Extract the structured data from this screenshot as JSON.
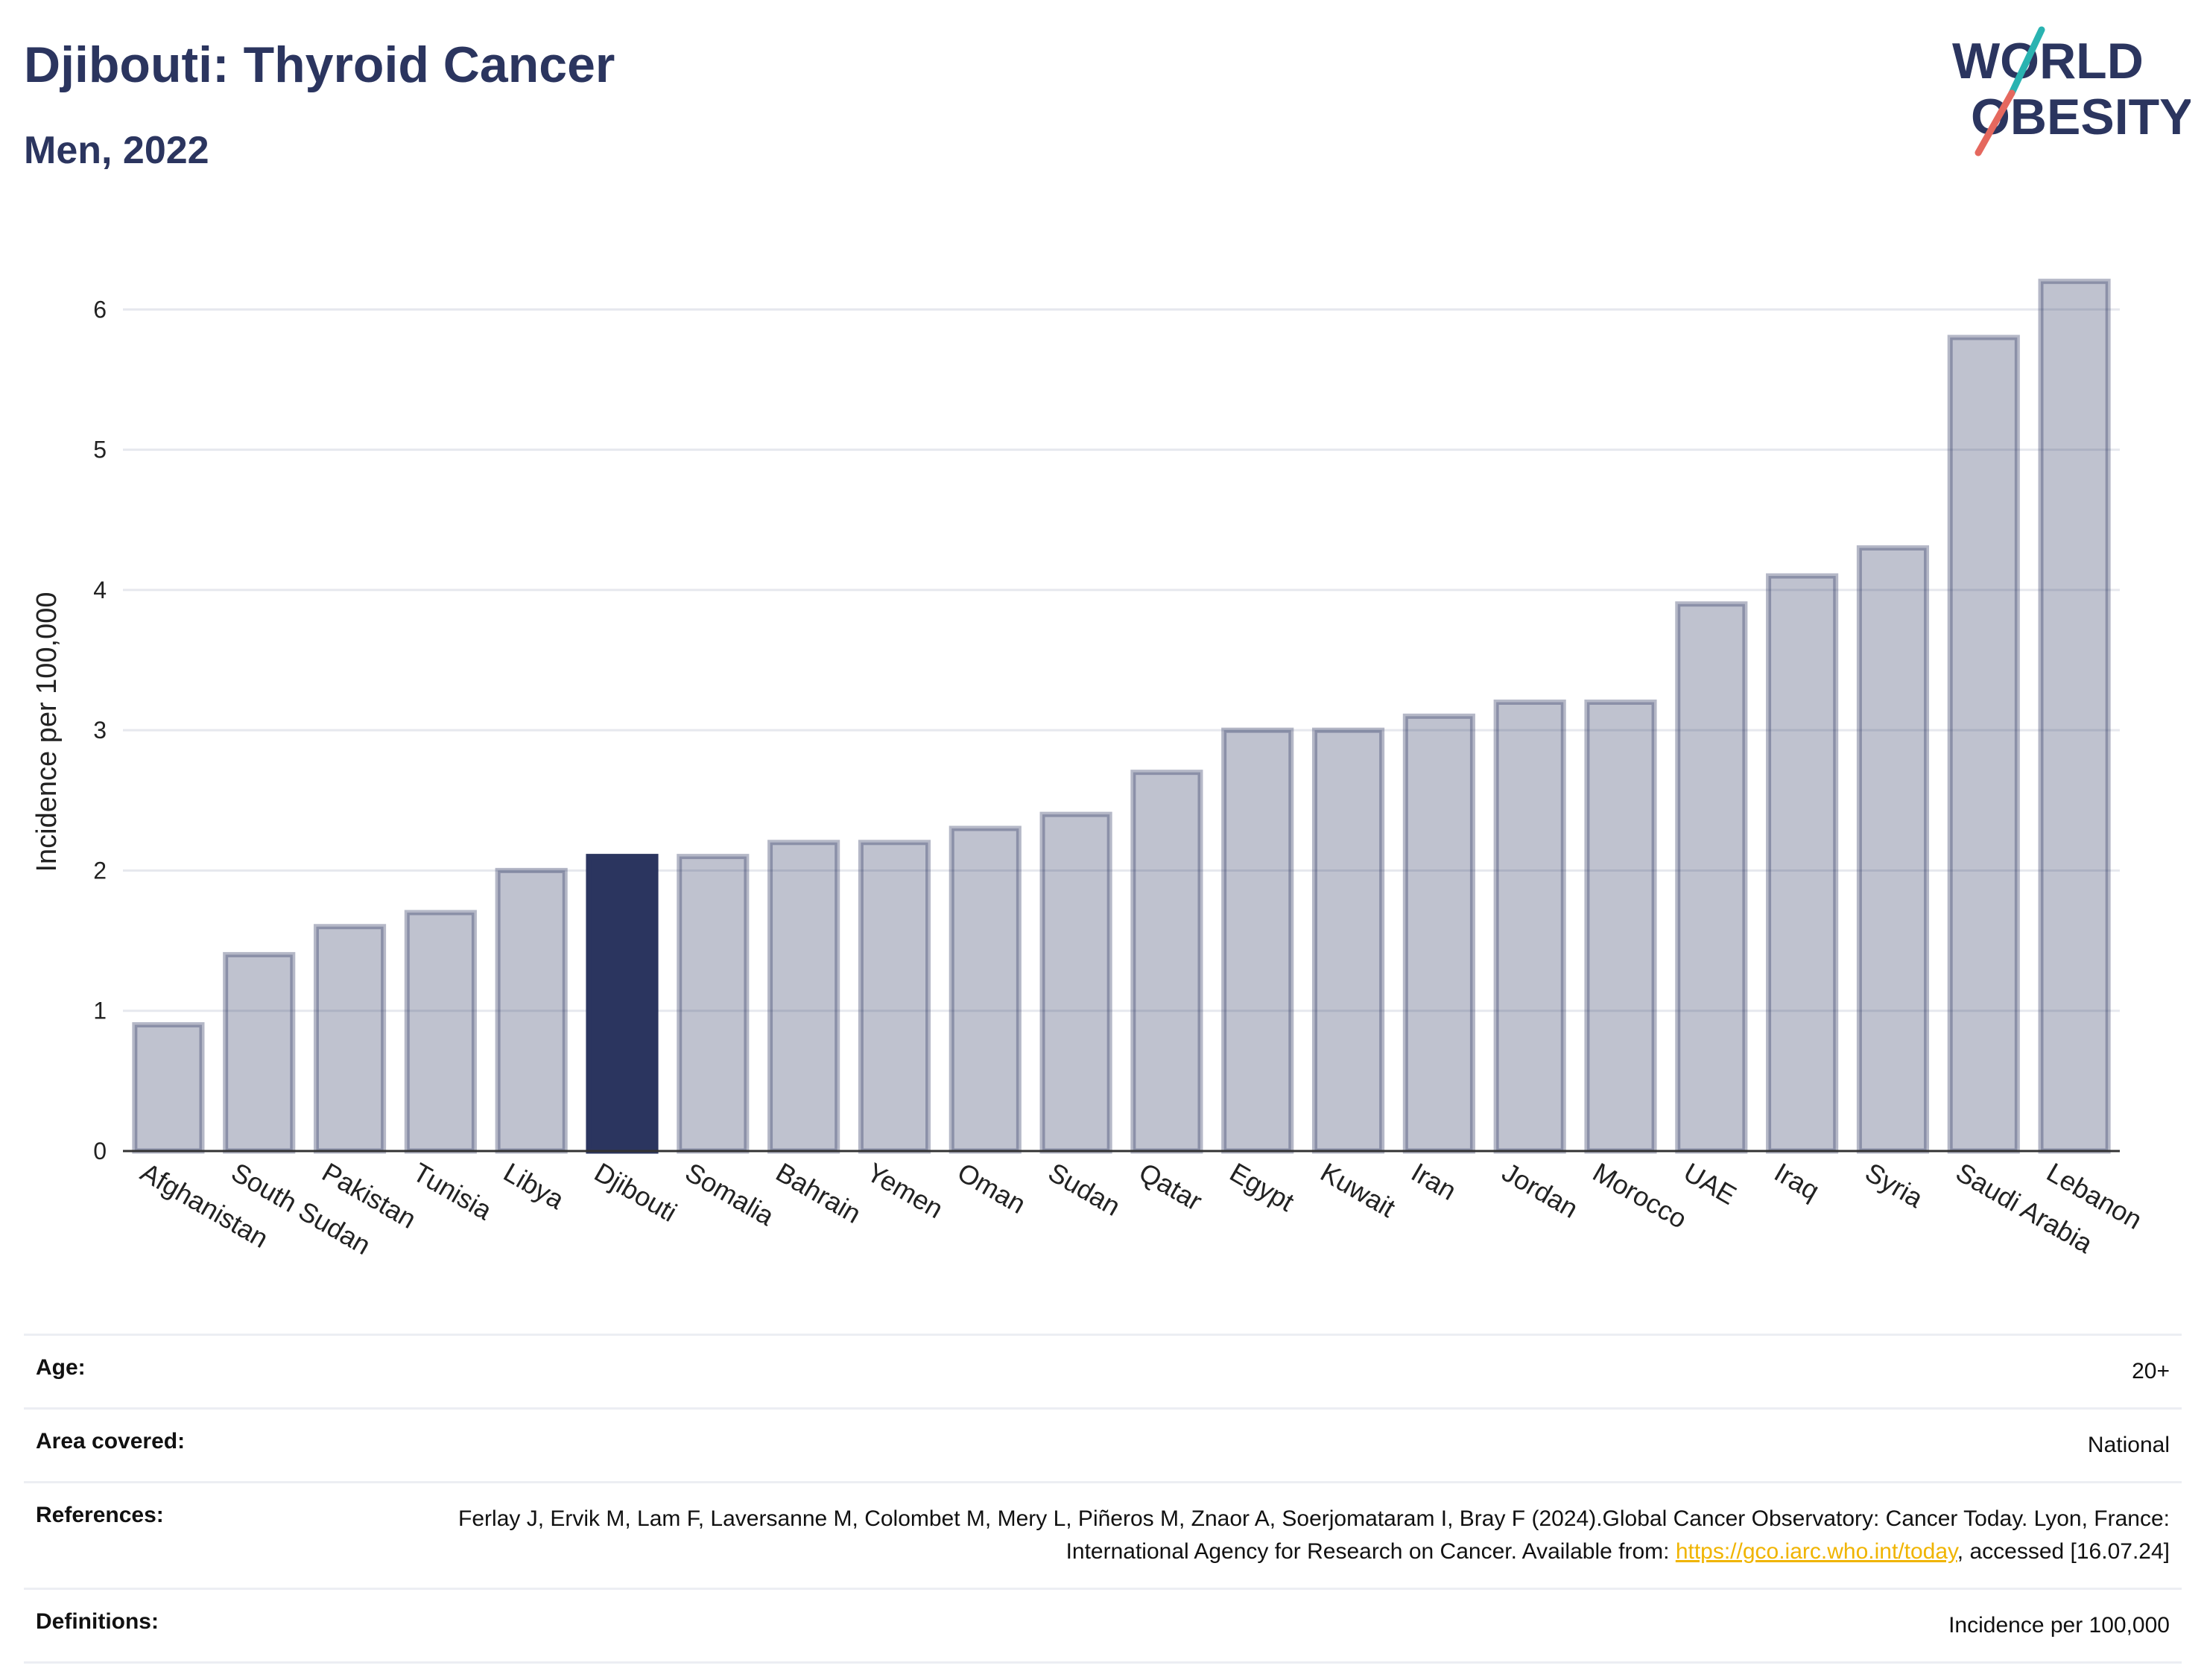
{
  "header": {
    "title": "Djibouti: Thyroid Cancer",
    "subtitle": "Men, 2022"
  },
  "logo": {
    "line1": "WORLD",
    "line2": "OBESITY",
    "colors": {
      "text": "#2b355f",
      "slash_teal": "#2ab3b1",
      "slash_red": "#e5685e"
    }
  },
  "chart_data": {
    "type": "bar",
    "title": "",
    "xlabel": "",
    "ylabel": "Incidence per 100,000",
    "ylim": [
      0,
      6.4
    ],
    "yticks": [
      0,
      1,
      2,
      3,
      4,
      5,
      6
    ],
    "grid": true,
    "highlight": "Djibouti",
    "colors": {
      "bar": "#2b355f",
      "bar_fill_opacity": 0.3,
      "highlight": "#2b355f",
      "grid": "#e6e8ee"
    },
    "categories": [
      "Afghanistan",
      "South Sudan",
      "Pakistan",
      "Tunisia",
      "Libya",
      "Djibouti",
      "Somalia",
      "Bahrain",
      "Yemen",
      "Oman",
      "Sudan",
      "Qatar",
      "Egypt",
      "Kuwait",
      "Iran",
      "Jordan",
      "Morocco",
      "UAE",
      "Iraq",
      "Syria",
      "Saudi Arabia",
      "Lebanon"
    ],
    "values": [
      0.9,
      1.4,
      1.6,
      1.7,
      2.0,
      2.1,
      2.1,
      2.2,
      2.2,
      2.3,
      2.4,
      2.7,
      3.0,
      3.0,
      3.1,
      3.2,
      3.2,
      3.9,
      4.1,
      4.3,
      5.8,
      6.2
    ]
  },
  "meta": {
    "age_label": "Age:",
    "age_value": "20+",
    "area_label": "Area covered:",
    "area_value": "National",
    "references_label": "References:",
    "references_text": "Ferlay J, Ervik M, Lam F, Laversanne M, Colombet M, Mery L, Piñeros M, Znaor A, Soerjomataram I, Bray F (2024).Global Cancer Observatory: Cancer Today. Lyon, France: International Agency for Research on Cancer. Available from: ",
    "references_link": "https://gco.iarc.who.int/today",
    "references_tail": ", accessed [16.07.24]",
    "definitions_label": "Definitions:",
    "definitions_value": "Incidence per 100,000"
  }
}
